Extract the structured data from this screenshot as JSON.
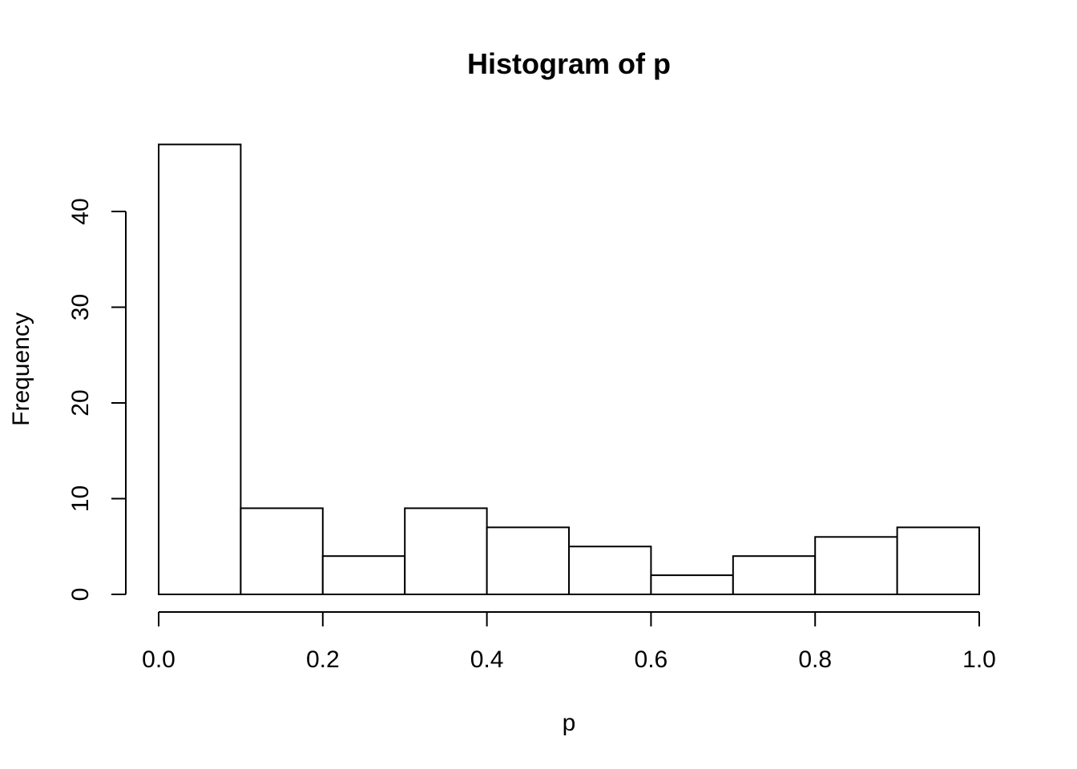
{
  "chart_data": {
    "type": "bar",
    "title": "Histogram of p",
    "xlabel": "p",
    "ylabel": "Frequency",
    "bins": [
      {
        "x0": 0.0,
        "x1": 0.1,
        "value": 47
      },
      {
        "x0": 0.1,
        "x1": 0.2,
        "value": 9
      },
      {
        "x0": 0.2,
        "x1": 0.3,
        "value": 4
      },
      {
        "x0": 0.3,
        "x1": 0.4,
        "value": 9
      },
      {
        "x0": 0.4,
        "x1": 0.5,
        "value": 7
      },
      {
        "x0": 0.5,
        "x1": 0.6,
        "value": 5
      },
      {
        "x0": 0.6,
        "x1": 0.7,
        "value": 2
      },
      {
        "x0": 0.7,
        "x1": 0.8,
        "value": 4
      },
      {
        "x0": 0.8,
        "x1": 0.9,
        "value": 6
      },
      {
        "x0": 0.9,
        "x1": 1.0,
        "value": 7
      }
    ],
    "x_ticks": [
      0.0,
      0.2,
      0.4,
      0.6,
      0.8,
      1.0
    ],
    "x_tick_labels": [
      "0.0",
      "0.2",
      "0.4",
      "0.6",
      "0.8",
      "1.0"
    ],
    "y_ticks": [
      0,
      10,
      20,
      30,
      40
    ],
    "y_tick_labels": [
      "0",
      "10",
      "20",
      "30",
      "40"
    ],
    "xlim": [
      0.0,
      1.0
    ],
    "ylim": [
      0,
      47
    ],
    "grid": false,
    "bar_fill": "#ffffff",
    "bar_stroke": "#000000"
  }
}
